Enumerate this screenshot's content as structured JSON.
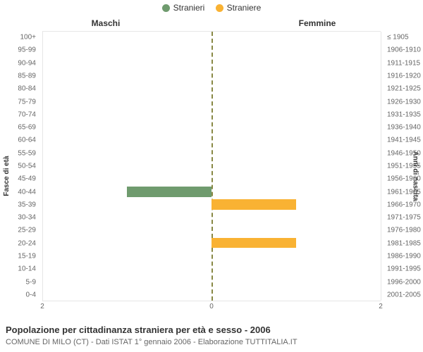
{
  "legend": {
    "items": [
      {
        "label": "Stranieri",
        "color": "#6f9b6e"
      },
      {
        "label": "Straniere",
        "color": "#f9b233"
      }
    ]
  },
  "side_titles": {
    "left": "Maschi",
    "right": "Femmine"
  },
  "axis_labels": {
    "left": "Fasce di età",
    "right": "Anni di nascita"
  },
  "age_rows": [
    {
      "age": "100+",
      "birth": "≤ 1905",
      "m": 0,
      "f": 0
    },
    {
      "age": "95-99",
      "birth": "1906-1910",
      "m": 0,
      "f": 0
    },
    {
      "age": "90-94",
      "birth": "1911-1915",
      "m": 0,
      "f": 0
    },
    {
      "age": "85-89",
      "birth": "1916-1920",
      "m": 0,
      "f": 0
    },
    {
      "age": "80-84",
      "birth": "1921-1925",
      "m": 0,
      "f": 0
    },
    {
      "age": "75-79",
      "birth": "1926-1930",
      "m": 0,
      "f": 0
    },
    {
      "age": "70-74",
      "birth": "1931-1935",
      "m": 0,
      "f": 0
    },
    {
      "age": "65-69",
      "birth": "1936-1940",
      "m": 0,
      "f": 0
    },
    {
      "age": "60-64",
      "birth": "1941-1945",
      "m": 0,
      "f": 0
    },
    {
      "age": "55-59",
      "birth": "1946-1950",
      "m": 0,
      "f": 0
    },
    {
      "age": "50-54",
      "birth": "1951-1955",
      "m": 0,
      "f": 0
    },
    {
      "age": "45-49",
      "birth": "1956-1960",
      "m": 0,
      "f": 0
    },
    {
      "age": "40-44",
      "birth": "1961-1965",
      "m": 1,
      "f": 0
    },
    {
      "age": "35-39",
      "birth": "1966-1970",
      "m": 0,
      "f": 1
    },
    {
      "age": "30-34",
      "birth": "1971-1975",
      "m": 0,
      "f": 0
    },
    {
      "age": "25-29",
      "birth": "1976-1980",
      "m": 0,
      "f": 0
    },
    {
      "age": "20-24",
      "birth": "1981-1985",
      "m": 0,
      "f": 1
    },
    {
      "age": "15-19",
      "birth": "1986-1990",
      "m": 0,
      "f": 0
    },
    {
      "age": "10-14",
      "birth": "1991-1995",
      "m": 0,
      "f": 0
    },
    {
      "age": "5-9",
      "birth": "1996-2000",
      "m": 0,
      "f": 0
    },
    {
      "age": "0-4",
      "birth": "2001-2005",
      "m": 0,
      "f": 0
    }
  ],
  "xaxis": {
    "max": 2,
    "ticks_left": [
      2,
      0
    ],
    "ticks_right": [
      0,
      2
    ]
  },
  "colors": {
    "male_bar": "#6f9b6e",
    "female_bar": "#f9b233",
    "center_line": "#888844",
    "grid": "#e6e6e6",
    "text": "#333333",
    "subtext": "#666666",
    "background": "#ffffff"
  },
  "chart": {
    "type": "population-pyramid",
    "bar_fill_opacity": 1,
    "row_height_pct": 4.7619,
    "font_size_ticks": 10,
    "font_size_legend": 12,
    "font_size_title": 13,
    "font_size_subtitle": 11
  },
  "titles": {
    "main": "Popolazione per cittadinanza straniera per età e sesso - 2006",
    "sub": "COMUNE DI MILO (CT) - Dati ISTAT 1° gennaio 2006 - Elaborazione TUTTITALIA.IT"
  }
}
